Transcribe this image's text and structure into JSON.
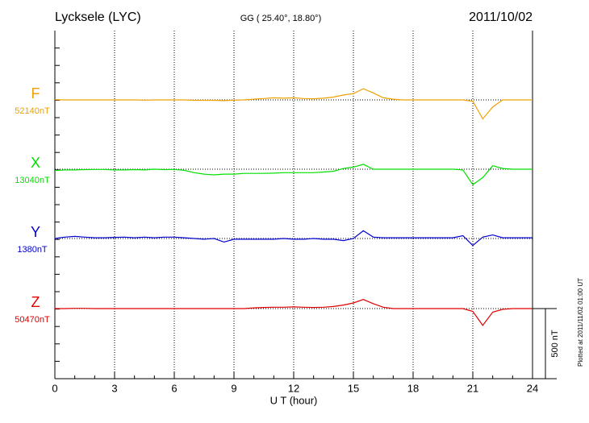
{
  "chart_data": {
    "type": "line",
    "title": "Lycksele (LYC)",
    "subtitle": "GG ( 25.40°,  18.80°)",
    "date": "2011/10/02",
    "x_label": "U T (hour)",
    "footnote": "Plotted at 2011/11/02 01:00 UT",
    "scale_bar": {
      "value": 500,
      "label": "500 nT"
    },
    "xlim": [
      0,
      24
    ],
    "xticks": [
      0,
      3,
      6,
      9,
      12,
      15,
      18,
      21,
      24
    ],
    "grid": true,
    "x": [
      0,
      0.5,
      1,
      1.5,
      2,
      2.5,
      3,
      3.5,
      4,
      4.5,
      5,
      5.5,
      6,
      6.5,
      7,
      7.5,
      8,
      8.5,
      9,
      9.5,
      10,
      10.5,
      11,
      11.5,
      12,
      12.5,
      13,
      13.5,
      14,
      14.5,
      15,
      15.5,
      16,
      16.5,
      17,
      17.5,
      18,
      18.5,
      19,
      19.5,
      20,
      20.5,
      21,
      21.5,
      22,
      22.5,
      23,
      23.5,
      24
    ],
    "series": [
      {
        "name": "F",
        "baseline_label": "52140nT",
        "color": "#f0a000",
        "values": [
          2,
          0,
          0,
          0,
          0,
          0,
          0,
          0,
          0,
          -2,
          0,
          0,
          0,
          0,
          -3,
          -3,
          -3,
          -5,
          -2,
          0,
          5,
          10,
          15,
          12,
          15,
          10,
          8,
          12,
          20,
          35,
          45,
          80,
          50,
          15,
          5,
          0,
          0,
          0,
          0,
          0,
          0,
          0,
          -10,
          -135,
          -50,
          0,
          0,
          0,
          0
        ]
      },
      {
        "name": "X",
        "baseline_label": "13040nT",
        "color": "#00e000",
        "values": [
          -10,
          -5,
          -5,
          -3,
          -2,
          -2,
          -5,
          -5,
          -3,
          -5,
          0,
          -3,
          -2,
          -8,
          -25,
          -35,
          -40,
          -35,
          -35,
          -30,
          -30,
          -30,
          -28,
          -25,
          -25,
          -25,
          -25,
          -20,
          -15,
          5,
          15,
          35,
          0,
          0,
          0,
          0,
          0,
          0,
          0,
          0,
          0,
          -5,
          -110,
          -60,
          25,
          5,
          0,
          0,
          0
        ]
      },
      {
        "name": "Y",
        "baseline_label": "1380nT",
        "color": "#0000d0",
        "values": [
          0,
          10,
          15,
          10,
          5,
          5,
          8,
          10,
          5,
          10,
          5,
          10,
          10,
          5,
          0,
          -5,
          0,
          -25,
          -5,
          -5,
          -5,
          -5,
          -5,
          0,
          -5,
          -5,
          0,
          -5,
          -5,
          -15,
          0,
          55,
          10,
          5,
          5,
          5,
          5,
          5,
          5,
          5,
          5,
          20,
          -50,
          10,
          25,
          5,
          5,
          5,
          5
        ]
      },
      {
        "name": "Z",
        "baseline_label": "50470nT",
        "color": "#e00000",
        "values": [
          0,
          0,
          2,
          2,
          0,
          0,
          0,
          0,
          0,
          0,
          0,
          0,
          0,
          0,
          0,
          0,
          0,
          0,
          0,
          0,
          5,
          8,
          10,
          10,
          12,
          10,
          8,
          10,
          15,
          25,
          40,
          65,
          35,
          10,
          0,
          0,
          0,
          0,
          0,
          0,
          0,
          0,
          -20,
          -120,
          -25,
          -5,
          0,
          0,
          0
        ]
      }
    ]
  }
}
